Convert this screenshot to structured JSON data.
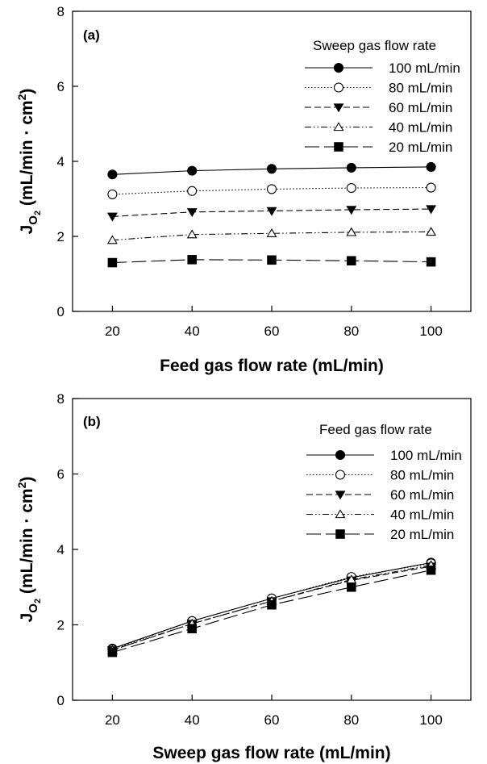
{
  "chart_data": [
    {
      "type": "line",
      "panel_label": "(a)",
      "xlabel": "Feed gas flow rate (mL/min)",
      "ylabel_main": "J",
      "ylabel_sub_o": "O",
      "ylabel_sub_2": "2",
      "ylabel_units_pre": " (mL/min · cm",
      "ylabel_units_sup": "2",
      "ylabel_units_post": ")",
      "xlim": [
        10,
        110
      ],
      "ylim": [
        0,
        8
      ],
      "xticks": [
        20,
        40,
        60,
        80,
        100
      ],
      "yticks": [
        0,
        2,
        4,
        6,
        8
      ],
      "legend_title": "Sweep gas flow rate",
      "legend_position": "top-right",
      "x": [
        20,
        40,
        60,
        80,
        100
      ],
      "series": [
        {
          "name": "100 mL/min",
          "marker": "circle-filled",
          "dash": "solid",
          "values": [
            3.65,
            3.75,
            3.8,
            3.83,
            3.85
          ]
        },
        {
          "name": "80 mL/min",
          "marker": "circle-open",
          "dash": "dotted",
          "values": [
            3.12,
            3.21,
            3.26,
            3.29,
            3.3
          ]
        },
        {
          "name": "60 mL/min",
          "marker": "triangle-down-filled",
          "dash": "dashed",
          "values": [
            2.53,
            2.65,
            2.68,
            2.71,
            2.73
          ]
        },
        {
          "name": "40 mL/min",
          "marker": "triangle-up-open",
          "dash": "dash-dot-dot",
          "values": [
            1.9,
            2.05,
            2.08,
            2.11,
            2.12
          ]
        },
        {
          "name": "20 mL/min",
          "marker": "square-filled",
          "dash": "long-dash",
          "values": [
            1.3,
            1.38,
            1.37,
            1.35,
            1.32
          ]
        }
      ]
    },
    {
      "type": "line",
      "panel_label": "(b)",
      "xlabel": "Sweep gas flow rate (mL/min)",
      "ylabel_main": "J",
      "ylabel_sub_o": "O",
      "ylabel_sub_2": "2",
      "ylabel_units_pre": " (mL/min · cm",
      "ylabel_units_sup": "2",
      "ylabel_units_post": ")",
      "xlim": [
        10,
        110
      ],
      "ylim": [
        0,
        8
      ],
      "xticks": [
        20,
        40,
        60,
        80,
        100
      ],
      "yticks": [
        0,
        2,
        4,
        6,
        8
      ],
      "legend_title": "Feed gas flow rate",
      "legend_position": "top-right",
      "x": [
        20,
        40,
        60,
        80,
        100
      ],
      "series": [
        {
          "name": "100 mL/min",
          "marker": "circle-filled",
          "dash": "solid",
          "values": [
            1.37,
            2.1,
            2.7,
            3.25,
            3.65
          ]
        },
        {
          "name": "80 mL/min",
          "marker": "circle-open",
          "dash": "dotted",
          "values": [
            1.35,
            2.1,
            2.7,
            3.27,
            3.63
          ]
        },
        {
          "name": "60 mL/min",
          "marker": "triangle-down-filled",
          "dash": "dashed",
          "values": [
            1.33,
            2.03,
            2.63,
            3.18,
            3.55
          ]
        },
        {
          "name": "40 mL/min",
          "marker": "triangle-up-open",
          "dash": "dash-dot-dot",
          "values": [
            1.33,
            2.03,
            2.63,
            3.2,
            3.58
          ]
        },
        {
          "name": "20 mL/min",
          "marker": "square-filled",
          "dash": "long-dash",
          "values": [
            1.27,
            1.9,
            2.53,
            3.0,
            3.45
          ]
        }
      ]
    }
  ]
}
